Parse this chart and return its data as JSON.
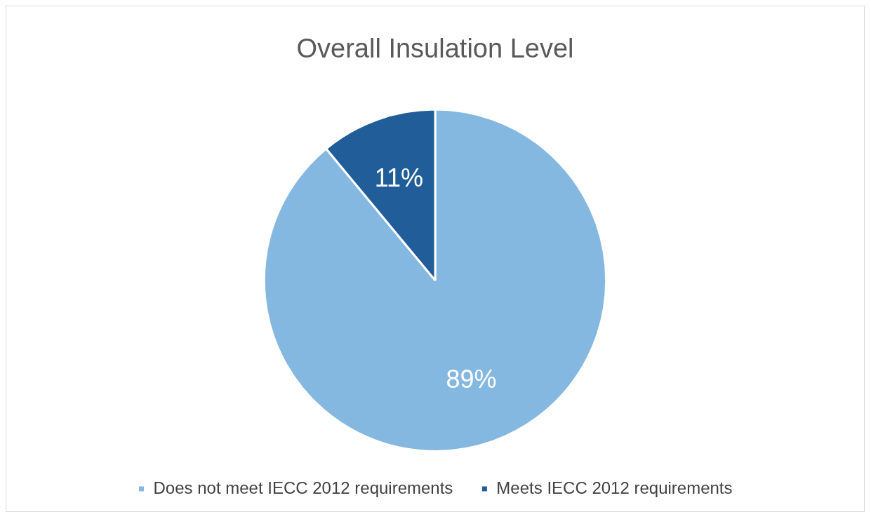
{
  "chart_data": {
    "type": "pie",
    "title": "Overall Insulation Level",
    "categories": [
      "Does not meet IECC 2012 requirements",
      "Meets IECC 2012 requirements"
    ],
    "values": [
      89,
      11
    ],
    "colors": [
      "#85b8e0",
      "#215e99"
    ],
    "value_labels": [
      "89%",
      "11%"
    ],
    "legend": "bottom"
  }
}
